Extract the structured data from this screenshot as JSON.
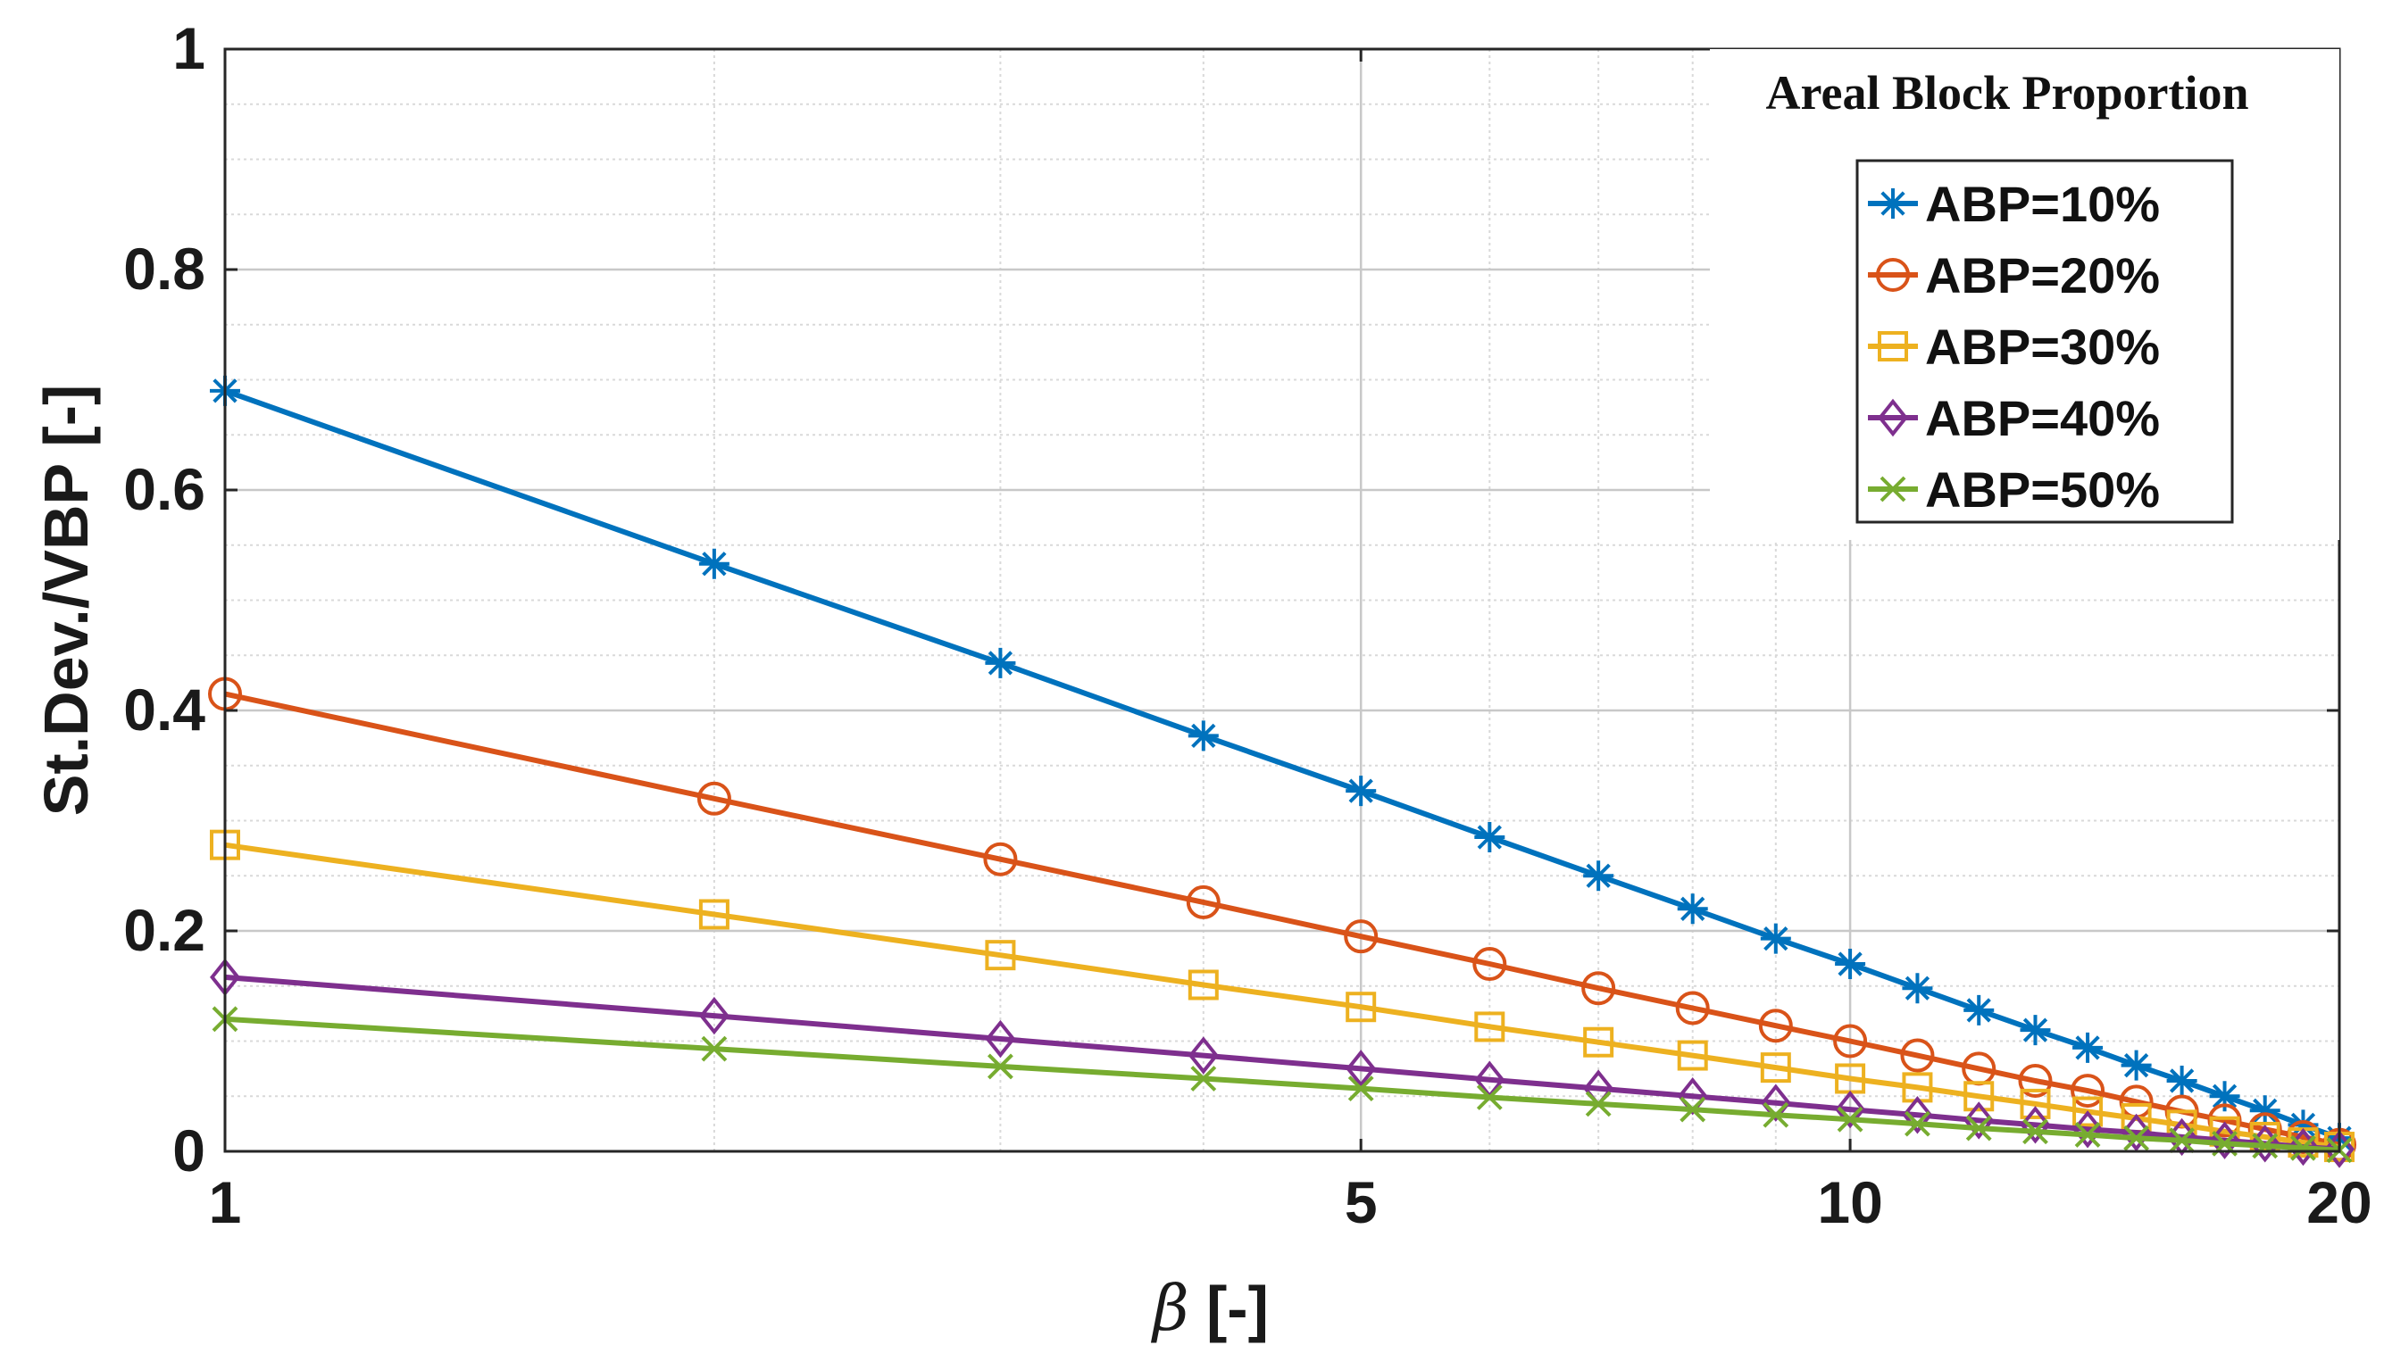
{
  "chart_data": {
    "type": "line",
    "title": "",
    "xlabel": "β [-]",
    "ylabel": "St.Dev./VBP [-]",
    "xscale": "log",
    "xlim": [
      1,
      20
    ],
    "ylim": [
      0,
      1
    ],
    "x_ticks": [
      1,
      5,
      10,
      20
    ],
    "x_tick_labels": [
      "1",
      "5",
      "10",
      "20"
    ],
    "y_ticks": [
      0,
      0.2,
      0.4,
      0.6,
      0.8,
      1
    ],
    "y_tick_labels": [
      "0",
      "0.2",
      "0.4",
      "0.6",
      "0.8",
      "1"
    ],
    "grid": true,
    "legend_title": "Areal Block Proportion",
    "legend_position": "top-right",
    "x": [
      1,
      2,
      3,
      4,
      5,
      6,
      7,
      8,
      9,
      10,
      11,
      12,
      13,
      14,
      15,
      16,
      17,
      18,
      19,
      20
    ],
    "series": [
      {
        "name": "ABP=10%",
        "color": "#0072BD",
        "marker": "star",
        "values": [
          0.69,
          0.533,
          0.443,
          0.377,
          0.327,
          0.285,
          0.25,
          0.22,
          0.193,
          0.17,
          0.148,
          0.128,
          0.11,
          0.094,
          0.078,
          0.064,
          0.05,
          0.037,
          0.024,
          0.012
        ]
      },
      {
        "name": "ABP=20%",
        "color": "#D95319",
        "marker": "circle",
        "values": [
          0.415,
          0.32,
          0.265,
          0.226,
          0.195,
          0.17,
          0.148,
          0.13,
          0.114,
          0.1,
          0.087,
          0.075,
          0.064,
          0.055,
          0.045,
          0.036,
          0.028,
          0.02,
          0.013,
          0.006
        ]
      },
      {
        "name": "ABP=30%",
        "color": "#EDB120",
        "marker": "square",
        "values": [
          0.278,
          0.215,
          0.178,
          0.151,
          0.131,
          0.113,
          0.099,
          0.087,
          0.076,
          0.066,
          0.058,
          0.05,
          0.043,
          0.036,
          0.03,
          0.024,
          0.018,
          0.013,
          0.008,
          0.004
        ]
      },
      {
        "name": "ABP=40%",
        "color": "#7E2F8E",
        "marker": "diamond",
        "values": [
          0.158,
          0.123,
          0.102,
          0.087,
          0.075,
          0.065,
          0.057,
          0.05,
          0.044,
          0.038,
          0.033,
          0.028,
          0.024,
          0.02,
          0.017,
          0.013,
          0.01,
          0.007,
          0.004,
          0.002
        ]
      },
      {
        "name": "ABP=50%",
        "color": "#77AC30",
        "marker": "x",
        "values": [
          0.12,
          0.093,
          0.077,
          0.066,
          0.057,
          0.049,
          0.043,
          0.038,
          0.033,
          0.029,
          0.025,
          0.021,
          0.018,
          0.015,
          0.012,
          0.01,
          0.007,
          0.005,
          0.003,
          0.001
        ]
      }
    ]
  }
}
